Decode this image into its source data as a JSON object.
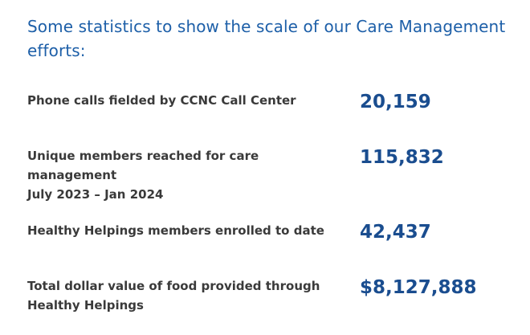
{
  "intro": {
    "text": "Some statistics to show the scale of our Care Management efforts:"
  },
  "colors": {
    "intro_text": "#1d5fa8",
    "label_text": "#3a3a3a",
    "value_text": "#1a4d8f",
    "background": "#ffffff"
  },
  "stats": [
    {
      "label_line1": "Phone calls fielded by CCNC Call Center",
      "label_line2": "",
      "value": "20,159"
    },
    {
      "label_line1": "Unique members reached for care management",
      "label_line2": "July 2023 – Jan 2024",
      "value": "115,832"
    },
    {
      "label_line1": "Healthy Helpings members enrolled to date",
      "label_line2": "",
      "value": "42,437"
    },
    {
      "label_line1": "Total dollar value of food provided through",
      "label_line2": "Healthy Helpings",
      "value": "$8,127,888"
    }
  ]
}
